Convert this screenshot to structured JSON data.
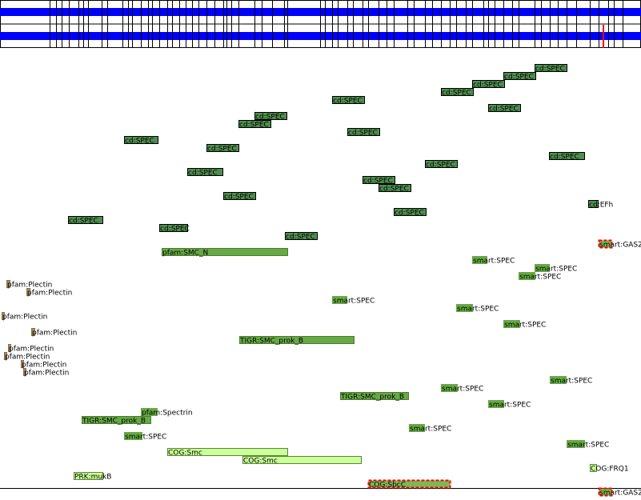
{
  "features": [
    {
      "label": "cd:SPEC"
    },
    {
      "label": "cd:SPEC"
    },
    {
      "label": "cd:SPEC"
    },
    {
      "label": "cd:SPEC"
    },
    {
      "label": "cd:SPEC"
    },
    {
      "label": "cd:SPEC"
    },
    {
      "label": "cd:SPEC"
    },
    {
      "label": "cd:SPEC"
    },
    {
      "label": "cd:SPEC"
    },
    {
      "label": "cd:SPEC"
    },
    {
      "label": "cd:SPEC"
    },
    {
      "label": "cd:SPEC"
    },
    {
      "label": "cd:SPEC"
    },
    {
      "label": "cd:SPEC"
    },
    {
      "label": "cd:SPEC"
    },
    {
      "label": "cd:SPEC"
    },
    {
      "label": "cd:SPEC"
    },
    {
      "label": "cd:EFh"
    },
    {
      "label": "cd:SPEC"
    },
    {
      "label": "cd:SPEC"
    },
    {
      "label": "cd:SPEC"
    },
    {
      "label": "cd:SPEC"
    },
    {
      "label": "smart:GAS2"
    },
    {
      "label": "pfam:SMC_N"
    },
    {
      "label": "smart:SPEC"
    },
    {
      "label": "smart:SPEC"
    },
    {
      "label": "smart:SPEC"
    },
    {
      "label": "pfam:Plectin"
    },
    {
      "label": "pfam:Plectin"
    },
    {
      "label": "smart:SPEC"
    },
    {
      "label": "smart:SPEC"
    },
    {
      "label": "pfam:Plectin"
    },
    {
      "label": "smart:SPEC"
    },
    {
      "label": "pfam:Plectin"
    },
    {
      "label": "TIGR:SMC_prok_B"
    },
    {
      "label": "pfam:Plectin"
    },
    {
      "label": "pfam:Plectin"
    },
    {
      "label": "pfam:Plectin"
    },
    {
      "label": "pfam:Plectin"
    },
    {
      "label": "smart:SPEC"
    },
    {
      "label": "smart:SPEC"
    },
    {
      "label": "TIGR:SMC_prok_B"
    },
    {
      "label": "smart:SPEC"
    },
    {
      "label": "pfam:Spectrin"
    },
    {
      "label": "TIGR:SMC_prok_B"
    },
    {
      "label": "smart:SPEC"
    },
    {
      "label": "smart:SPEC"
    },
    {
      "label": "smart:SPEC"
    },
    {
      "label": "COG:Smc"
    },
    {
      "label": "COG:Smc"
    },
    {
      "label": "COG:FRQ1"
    },
    {
      "label": "PRK:mukB"
    },
    {
      "label": "COG:SbcC"
    },
    {
      "label": "smart:GAS2"
    }
  ]
}
